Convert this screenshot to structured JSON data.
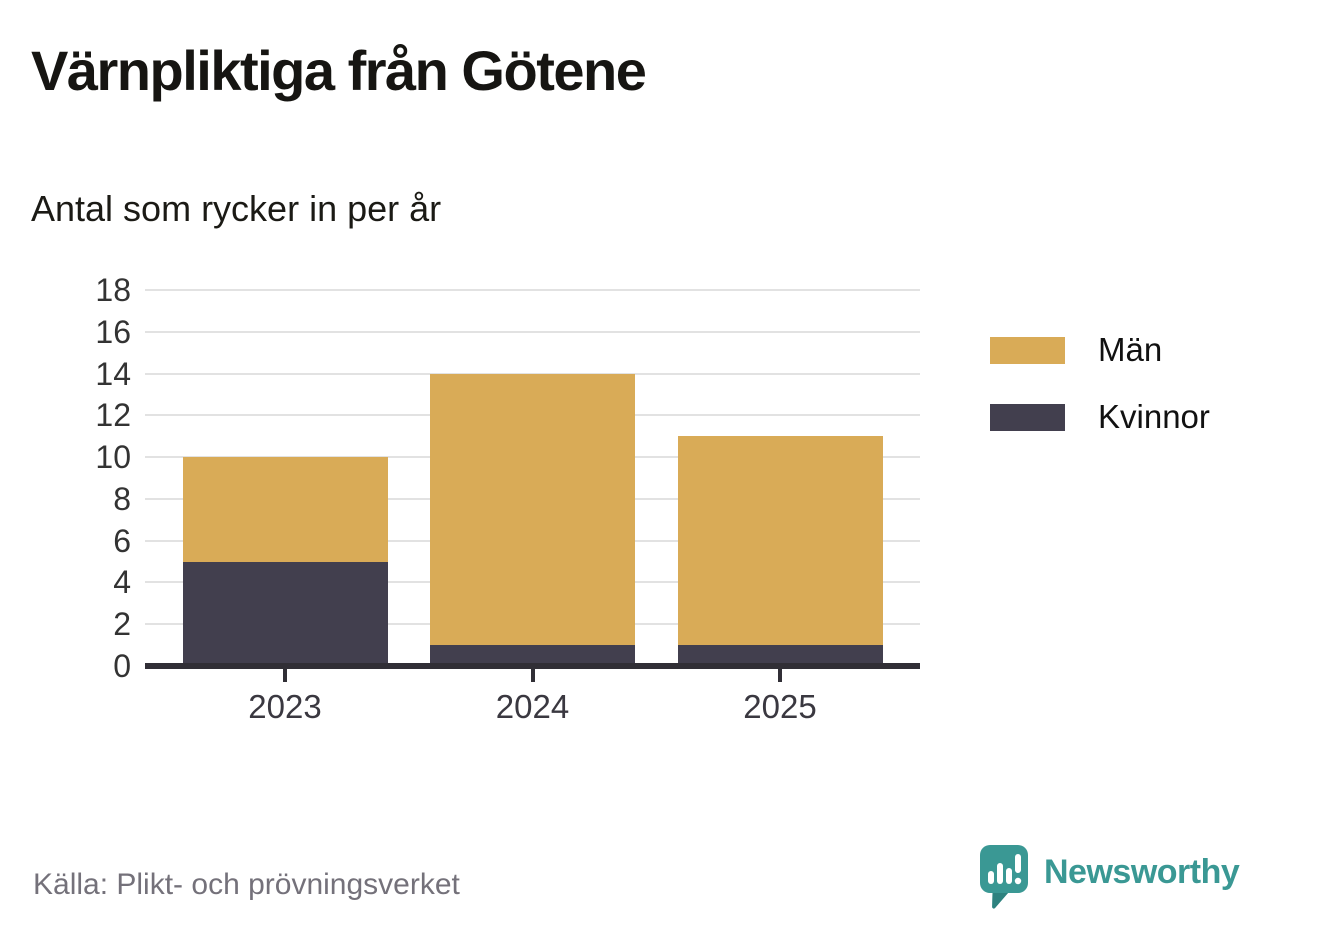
{
  "header": {
    "title": "Värnpliktiga från Götene",
    "subtitle": "Antal som rycker in per år"
  },
  "chart_data": {
    "type": "bar",
    "stacked": true,
    "title": "Värnpliktiga från Götene",
    "subtitle": "Antal som rycker in per år",
    "categories": [
      "2023",
      "2024",
      "2025"
    ],
    "series": [
      {
        "name": "Män",
        "color": "#d9ab57",
        "values": [
          5,
          13,
          10
        ]
      },
      {
        "name": "Kvinnor",
        "color": "#423f4e",
        "values": [
          5,
          1,
          1
        ]
      }
    ],
    "stack_totals": [
      10,
      14,
      11
    ],
    "ylim": [
      0,
      18
    ],
    "ytick_step": 2,
    "xlabel": "",
    "ylabel": "",
    "grid": "horizontal",
    "legend_position": "right"
  },
  "footer": {
    "source": "Källa: Plikt- och prövningsverket",
    "brand": "Newsworthy"
  },
  "colors": {
    "men": "#d9ab57",
    "women": "#423f4e",
    "axis": "#312f36",
    "gridline": "#e2e2e2",
    "source_text": "#74717a",
    "brand_teal": "#3a9894"
  }
}
